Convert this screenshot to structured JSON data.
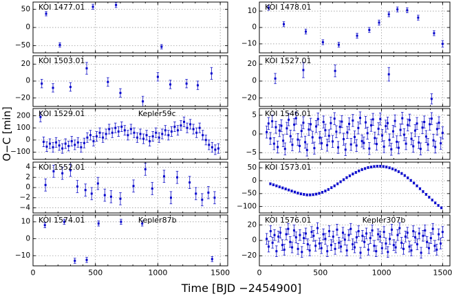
{
  "axes": {
    "x_label": "Time [BJD −2454900]",
    "y_label": "O−C [min]",
    "xlim": [
      0,
      1560
    ],
    "xticks": [
      0,
      500,
      1000,
      1500
    ],
    "x_minor_step": 100,
    "grid": "dotted",
    "legend": "none"
  },
  "style": {
    "bg": "#ffffff",
    "point_color": "#0000cc",
    "error_color": "#2222cc",
    "grid_color": "#888888",
    "axis_color": "#000000",
    "label_color": "#000000"
  },
  "chart_data": [
    {
      "type": "scatter",
      "title": "KOI 1477.01",
      "name": "",
      "ylim": [
        -70,
        70
      ],
      "yticks": [
        -50,
        0,
        50
      ],
      "points": [
        [
          105,
          38,
          6
        ],
        [
          215,
          -48,
          6
        ],
        [
          480,
          57,
          7
        ],
        [
          665,
          62,
          7
        ],
        [
          1030,
          -53,
          6
        ]
      ]
    },
    {
      "type": "scatter",
      "title": "KOI 1478.01",
      "name": "",
      "ylim": [
        -15.5,
        15.5
      ],
      "yticks": [
        -10,
        0,
        10
      ],
      "points": [
        [
          75,
          12,
          1.5
        ],
        [
          200,
          2,
          1.5
        ],
        [
          380,
          -2.5,
          1.5
        ],
        [
          520,
          -9,
          1.5
        ],
        [
          650,
          -10.5,
          1.5
        ],
        [
          800,
          -5,
          1.5
        ],
        [
          900,
          -1.5,
          1.5
        ],
        [
          980,
          3,
          1.5
        ],
        [
          1060,
          8,
          1.5
        ],
        [
          1130,
          11,
          1.5
        ],
        [
          1210,
          10.5,
          1.5
        ],
        [
          1300,
          6,
          1.5
        ],
        [
          1430,
          -3.5,
          1.5
        ],
        [
          1500,
          -10,
          2
        ]
      ]
    },
    {
      "type": "scatter",
      "title": "KOI 1503.01",
      "name": "",
      "ylim": [
        -30,
        30
      ],
      "yticks": [
        -20,
        0,
        20
      ],
      "points": [
        [
          70,
          -3,
          5
        ],
        [
          160,
          -8,
          5
        ],
        [
          300,
          -7,
          5
        ],
        [
          430,
          15,
          7
        ],
        [
          600,
          -1,
          5
        ],
        [
          700,
          -14,
          5
        ],
        [
          880,
          -24,
          6
        ],
        [
          1000,
          5,
          5
        ],
        [
          1100,
          -4,
          5
        ],
        [
          1230,
          -3,
          5
        ],
        [
          1320,
          -5,
          5
        ],
        [
          1430,
          9,
          7
        ]
      ]
    },
    {
      "type": "scatter",
      "title": "KOI 1527.01",
      "name": "",
      "ylim": [
        -30,
        30
      ],
      "yticks": [
        -20,
        0,
        20
      ],
      "points": [
        [
          130,
          3,
          6
        ],
        [
          360,
          13,
          9
        ],
        [
          620,
          12,
          7
        ],
        [
          1060,
          8,
          8
        ],
        [
          1410,
          -21,
          6
        ]
      ]
    },
    {
      "type": "scatter",
      "title": "KOI 1529.01",
      "name": "Kepler59c",
      "ylim": [
        -160,
        260
      ],
      "yticks": [
        -100,
        0,
        100,
        200
      ],
      "x_start": 60,
      "x_step": 25,
      "yerr": 40,
      "y": [
        190,
        -15,
        -55,
        -30,
        -60,
        -20,
        -45,
        -70,
        -30,
        -50,
        -10,
        -40,
        -20,
        -60,
        -25,
        20,
        40,
        -10,
        30,
        60,
        20,
        50,
        90,
        60,
        100,
        70,
        110,
        80,
        40,
        90,
        60,
        20,
        50,
        10,
        40,
        -10,
        30,
        60,
        20,
        50,
        80,
        40,
        70,
        110,
        80,
        120,
        150,
        100,
        130,
        90,
        60,
        100,
        40,
        0,
        -40,
        -60,
        -80,
        -70
      ]
    },
    {
      "type": "scatter",
      "title": "KOI 1546.01",
      "name": "",
      "ylim": [
        -6.8,
        6.8
      ],
      "yticks": [
        -5,
        0,
        5
      ],
      "x_start": 60,
      "x_step": 15,
      "yerr": 1.6,
      "y": [
        0.5,
        2.8,
        -1.2,
        3.4,
        -2.6,
        1.8,
        -3.5,
        0.9,
        2.2,
        -1.8,
        -4.0,
        1.5,
        3.8,
        -0.6,
        -2.9,
        2.5,
        4.2,
        -1.5,
        -3.2,
        0.8,
        3.0,
        -2.2,
        -4.3,
        1.2,
        2.6,
        -0.9,
        -3.8,
        2.0,
        4.0,
        -1.0,
        -2.5,
        3.2,
        1.0,
        -3.0,
        -0.5,
        2.9,
        -2.0,
        4.1,
        0.6,
        -3.6,
        1.9,
        3.3,
        -1.4,
        -4.2,
        0.4,
        2.7,
        -2.8,
        3.6,
        -0.8,
        -3.1,
        1.6,
        4.3,
        -1.9,
        -2.4,
        3.1,
        0.2,
        -3.9,
        2.3,
        3.9,
        -1.1,
        -2.7,
        1.4,
        4.0,
        -0.4,
        -3.4,
        2.1,
        2.9,
        -1.6,
        -4.1,
        0.7,
        3.5,
        -2.1,
        -3.7,
        1.1,
        4.2,
        -0.2,
        -2.6,
        2.4,
        3.7,
        -1.3,
        -3.3,
        0.9,
        2.8,
        -2.3,
        -4.0,
        1.7,
        3.2,
        -0.7,
        -2.8,
        2.6,
        4.1,
        -1.7,
        -3.5,
        1.3,
        3.0,
        -2.5,
        0.3
      ]
    },
    {
      "type": "scatter",
      "title": "KOI 1552.01",
      "name": "",
      "ylim": [
        -5,
        5
      ],
      "yticks": [
        -4,
        -2,
        0,
        2,
        4
      ],
      "yerr": 1.2,
      "points": [
        [
          100,
          0.5
        ],
        [
          165,
          3.2
        ],
        [
          235,
          2.8
        ],
        [
          300,
          3.4
        ],
        [
          355,
          0.2
        ],
        [
          420,
          -0.5
        ],
        [
          470,
          -1.2
        ],
        [
          520,
          0.8
        ],
        [
          575,
          -1.5
        ],
        [
          625,
          -1.8
        ],
        [
          700,
          -2.2
        ],
        [
          805,
          0.3
        ],
        [
          900,
          3.6
        ],
        [
          955,
          -0.2
        ],
        [
          1050,
          2.2
        ],
        [
          1105,
          -2.0
        ],
        [
          1155,
          2.0
        ],
        [
          1255,
          1.0
        ],
        [
          1305,
          -1.2
        ],
        [
          1355,
          -2.4
        ],
        [
          1405,
          -1.0
        ],
        [
          1455,
          -2.0
        ]
      ]
    },
    {
      "type": "scatter",
      "title": "KOI 1573.01",
      "name": "",
      "ylim": [
        -125,
        72
      ],
      "yticks": [
        -100,
        -50,
        0,
        50
      ],
      "x_start": 90,
      "x_step": 25,
      "yerr": 4,
      "y": [
        -12,
        -16,
        -20,
        -24,
        -28,
        -32,
        -36,
        -40,
        -44,
        -48,
        -51,
        -53,
        -55,
        -55,
        -54,
        -52,
        -49,
        -45,
        -40,
        -34,
        -27,
        -20,
        -12,
        -4,
        4,
        12,
        19,
        26,
        32,
        38,
        43,
        47,
        51,
        53,
        55,
        56,
        56,
        55,
        53,
        50,
        46,
        41,
        35,
        28,
        20,
        11,
        1,
        -9,
        -20,
        -31,
        -42,
        -53,
        -64,
        -75,
        -86,
        -96,
        -105
      ]
    },
    {
      "type": "scatter",
      "title": "KOI 1574.01",
      "name": "Kepler87b",
      "ylim": [
        -16,
        14
      ],
      "yticks": [
        -10,
        0,
        10
      ],
      "yerr": 1.5,
      "points": [
        [
          95,
          8
        ],
        [
          250,
          10
        ],
        [
          335,
          -13
        ],
        [
          430,
          -12.5
        ],
        [
          525,
          9
        ],
        [
          705,
          10
        ],
        [
          875,
          9
        ],
        [
          1435,
          -12
        ]
      ]
    },
    {
      "type": "scatter",
      "title": "KOI 1576.01",
      "name": "Kepler307b",
      "ylim": [
        -33,
        33
      ],
      "yticks": [
        -20,
        0,
        20
      ],
      "x_start": 60,
      "x_step": 16,
      "yerr": 7,
      "y": [
        2,
        -8,
        12,
        -3,
        7,
        -14,
        5,
        10,
        -6,
        -12,
        8,
        15,
        -2,
        -9,
        13,
        4,
        -11,
        7,
        -15,
        3,
        9,
        -5,
        -13,
        11,
        6,
        -7,
        16,
        -4,
        -10,
        8,
        2,
        -14,
        12,
        -6,
        5,
        -11,
        14,
        -3,
        -8,
        10,
        1,
        -13,
        7,
        15,
        -5,
        -9,
        4,
        12,
        -16,
        6,
        -2,
        9,
        -12,
        3,
        13,
        -7,
        -14,
        8,
        5,
        -10,
        11,
        -4,
        -15,
        2,
        14,
        -6,
        -9,
        7,
        16,
        -3,
        -11,
        5,
        10,
        -8,
        -13,
        12,
        4,
        -5,
        9,
        -16,
        6,
        13,
        -2,
        -10,
        3,
        15,
        -7,
        -12,
        8,
        -4,
        11
      ]
    }
  ]
}
